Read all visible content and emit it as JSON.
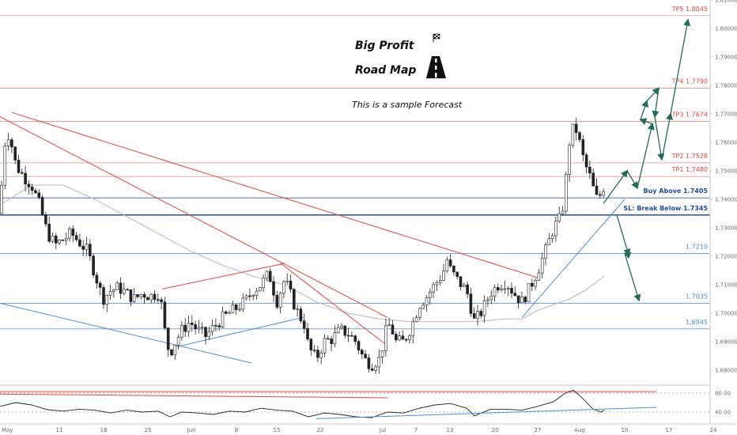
{
  "chart_data": {
    "type": "candlestick",
    "title": "Big Profit",
    "subtitle": "Road Map",
    "annotation": "This is a sample Forecast",
    "ylim": [
      1.675,
      1.81
    ],
    "price_ticks": [
      "1.81000",
      "1.80000",
      "1.79000",
      "1.78000",
      "1.77000",
      "1.76000",
      "1.75000",
      "1.74000",
      "1.73000",
      "1.72000",
      "1.71000",
      "1.70000",
      "1.69000",
      "1.68000"
    ],
    "x_ticks": [
      "May",
      "11",
      "18",
      "25",
      "Jun",
      "8",
      "15",
      "22",
      "Jul",
      "7",
      "13",
      "20",
      "27",
      "Aug",
      "10",
      "17",
      "24"
    ],
    "osc_ticks": [
      "80.00",
      "40.00"
    ],
    "levels": [
      {
        "label": "TP5",
        "value": "1.8045",
        "price": 1.8045,
        "color": "#e0473f"
      },
      {
        "label": "TP4",
        "value": "1.7790",
        "price": 1.779,
        "color": "#e0473f"
      },
      {
        "label": "TP3",
        "value": "1.7674",
        "price": 1.7674,
        "color": "#e0473f"
      },
      {
        "label": "TP2",
        "value": "1.7528",
        "price": 1.7528,
        "color": "#e0473f"
      },
      {
        "label": "TP1",
        "value": "1.7480",
        "price": 1.748,
        "color": "#e0473f"
      },
      {
        "label": "Buy Above",
        "value": "1.7405",
        "price": 1.7405,
        "color": "#1f4e9c"
      },
      {
        "label": "SL: Break Below",
        "value": "1.7345",
        "price": 1.7345,
        "color": "#1f4e9c"
      },
      {
        "label": "",
        "value": "1.7210",
        "price": 1.721,
        "color": "#4a90d9"
      },
      {
        "label": "",
        "value": "1.7035",
        "price": 1.7035,
        "color": "#4a90d9"
      },
      {
        "label": "",
        "value": "1.6945",
        "price": 1.6945,
        "color": "#4a90d9"
      }
    ],
    "close_path": [
      [
        0,
        1.735
      ],
      [
        3,
        1.75
      ],
      [
        8,
        1.765
      ],
      [
        14,
        1.76
      ],
      [
        20,
        1.752
      ],
      [
        30,
        1.748
      ],
      [
        40,
        1.745
      ],
      [
        50,
        1.738
      ],
      [
        60,
        1.728
      ],
      [
        70,
        1.724
      ],
      [
        80,
        1.726
      ],
      [
        90,
        1.728
      ],
      [
        100,
        1.725
      ],
      [
        110,
        1.722
      ],
      [
        120,
        1.714
      ],
      [
        130,
        1.705
      ],
      [
        140,
        1.708
      ],
      [
        150,
        1.709
      ],
      [
        160,
        1.707
      ],
      [
        170,
        1.705
      ],
      [
        180,
        1.707
      ],
      [
        190,
        1.706
      ],
      [
        200,
        1.707
      ],
      [
        205,
        1.702
      ],
      [
        210,
        1.69
      ],
      [
        215,
        1.686
      ],
      [
        220,
        1.689
      ],
      [
        230,
        1.694
      ],
      [
        240,
        1.697
      ],
      [
        250,
        1.694
      ],
      [
        260,
        1.692
      ],
      [
        270,
        1.695
      ],
      [
        280,
        1.698
      ],
      [
        290,
        1.7
      ],
      [
        300,
        1.702
      ],
      [
        310,
        1.704
      ],
      [
        320,
        1.708
      ],
      [
        330,
        1.71
      ],
      [
        340,
        1.714
      ],
      [
        350,
        1.704
      ],
      [
        360,
        1.712
      ],
      [
        368,
        1.706
      ],
      [
        375,
        1.701
      ],
      [
        385,
        1.696
      ],
      [
        390,
        1.688
      ],
      [
        400,
        1.684
      ],
      [
        410,
        1.69
      ],
      [
        420,
        1.691
      ],
      [
        430,
        1.694
      ],
      [
        440,
        1.693
      ],
      [
        450,
        1.69
      ],
      [
        460,
        1.684
      ],
      [
        470,
        1.682
      ],
      [
        480,
        1.684
      ],
      [
        485,
        1.69
      ],
      [
        490,
        1.696
      ],
      [
        495,
        1.695
      ],
      [
        500,
        1.69
      ],
      [
        510,
        1.69
      ],
      [
        520,
        1.695
      ],
      [
        530,
        1.703
      ],
      [
        540,
        1.706
      ],
      [
        550,
        1.71
      ],
      [
        560,
        1.714
      ],
      [
        565,
        1.719
      ],
      [
        570,
        1.715
      ],
      [
        580,
        1.711
      ],
      [
        590,
        1.708
      ],
      [
        600,
        1.697
      ],
      [
        610,
        1.701
      ],
      [
        620,
        1.707
      ],
      [
        630,
        1.71
      ],
      [
        640,
        1.711
      ],
      [
        650,
        1.707
      ],
      [
        660,
        1.704
      ],
      [
        670,
        1.709
      ],
      [
        680,
        1.715
      ],
      [
        690,
        1.722
      ],
      [
        700,
        1.73
      ],
      [
        710,
        1.734
      ],
      [
        715,
        1.745
      ],
      [
        720,
        1.76
      ],
      [
        725,
        1.765
      ],
      [
        730,
        1.764
      ],
      [
        735,
        1.757
      ],
      [
        740,
        1.752
      ],
      [
        745,
        1.749
      ],
      [
        750,
        1.744
      ],
      [
        755,
        1.74
      ],
      [
        760,
        1.742
      ],
      [
        764,
        1.745
      ]
    ],
    "ma_path": [
      [
        0,
        1.738
      ],
      [
        40,
        1.745
      ],
      [
        80,
        1.745
      ],
      [
        120,
        1.74
      ],
      [
        160,
        1.734
      ],
      [
        200,
        1.728
      ],
      [
        240,
        1.722
      ],
      [
        280,
        1.717
      ],
      [
        320,
        1.713
      ],
      [
        360,
        1.71
      ],
      [
        400,
        1.704
      ],
      [
        440,
        1.7
      ],
      [
        480,
        1.698
      ],
      [
        520,
        1.697
      ],
      [
        560,
        1.697
      ],
      [
        600,
        1.697
      ],
      [
        640,
        1.698
      ],
      [
        660,
        1.698
      ],
      [
        680,
        1.701
      ],
      [
        700,
        1.703
      ],
      [
        720,
        1.705
      ],
      [
        740,
        1.708
      ],
      [
        764,
        1.713
      ]
    ],
    "trendlines": [
      {
        "color": "#e0473f",
        "x1": 15,
        "y1": 1.7705,
        "x2": 680,
        "y2": 1.7125
      },
      {
        "color": "#e0473f",
        "x1": 0,
        "y1": 1.769,
        "x2": 490,
        "y2": 1.6985
      },
      {
        "color": "#e0473f",
        "x1": 205,
        "y1": 1.7085,
        "x2": 360,
        "y2": 1.7175
      },
      {
        "color": "#e0473f",
        "x1": 355,
        "y1": 1.7175,
        "x2": 488,
        "y2": 1.689
      },
      {
        "color": "#4a90d9",
        "x1": 0,
        "y1": 1.7035,
        "x2": 318,
        "y2": 1.6825
      },
      {
        "color": "#4a90d9",
        "x1": 220,
        "y1": 1.688,
        "x2": 383,
        "y2": 1.6985
      },
      {
        "color": "#4a90d9",
        "x1": 660,
        "y1": 1.6985,
        "x2": 790,
        "y2": 1.74
      }
    ],
    "forecast_path": [
      [
        763,
        1.7385
      ],
      [
        793,
        1.75
      ],
      [
        806,
        1.744
      ],
      [
        825,
        1.7665
      ],
      [
        810,
        1.768
      ],
      [
        818,
        1.7745
      ],
      [
        833,
        1.779
      ],
      [
        828,
        1.769
      ],
      [
        837,
        1.754
      ],
      [
        848,
        1.77
      ],
      [
        870,
        1.803
      ]
    ],
    "forecast_down": [
      [
        780,
        1.7345
      ],
      [
        795,
        1.7205
      ],
      [
        790,
        1.721
      ],
      [
        808,
        1.7045
      ]
    ],
    "oscillator": {
      "path": [
        [
          0,
          52
        ],
        [
          20,
          60
        ],
        [
          40,
          55
        ],
        [
          60,
          45
        ],
        [
          80,
          42
        ],
        [
          100,
          46
        ],
        [
          120,
          44
        ],
        [
          140,
          38
        ],
        [
          160,
          44
        ],
        [
          180,
          40
        ],
        [
          200,
          42
        ],
        [
          215,
          30
        ],
        [
          230,
          40
        ],
        [
          250,
          38
        ],
        [
          270,
          35
        ],
        [
          290,
          42
        ],
        [
          310,
          40
        ],
        [
          330,
          48
        ],
        [
          350,
          44
        ],
        [
          370,
          42
        ],
        [
          390,
          30
        ],
        [
          410,
          38
        ],
        [
          430,
          35
        ],
        [
          450,
          30
        ],
        [
          470,
          28
        ],
        [
          490,
          40
        ],
        [
          510,
          38
        ],
        [
          530,
          48
        ],
        [
          550,
          55
        ],
        [
          570,
          58
        ],
        [
          590,
          48
        ],
        [
          600,
          32
        ],
        [
          620,
          46
        ],
        [
          640,
          46
        ],
        [
          660,
          44
        ],
        [
          680,
          52
        ],
        [
          700,
          62
        ],
        [
          715,
          80
        ],
        [
          725,
          86
        ],
        [
          735,
          72
        ],
        [
          750,
          46
        ],
        [
          760,
          40
        ],
        [
          764,
          44
        ]
      ],
      "red_line": [
        [
          0,
          78
        ],
        [
          490,
          70
        ]
      ],
      "blue_line": [
        [
          400,
          26
        ],
        [
          830,
          50
        ]
      ],
      "levels": [
        80,
        40
      ]
    }
  }
}
